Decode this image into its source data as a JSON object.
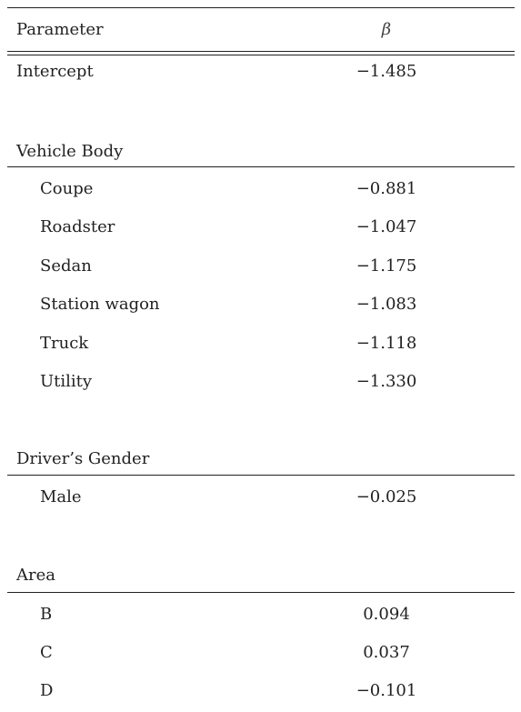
{
  "header": {
    "parameter_label": "Parameter",
    "coefficient_label": "β"
  },
  "intercept": {
    "label": "Intercept",
    "value": "−1.485"
  },
  "groups": [
    {
      "title": "Vehicle Body",
      "rows": [
        {
          "label": "Coupe",
          "value": "−0.881"
        },
        {
          "label": "Roadster",
          "value": "−1.047"
        },
        {
          "label": "Sedan",
          "value": "−1.175"
        },
        {
          "label": "Station wagon",
          "value": "−1.083"
        },
        {
          "label": "Truck",
          "value": "−1.118"
        },
        {
          "label": "Utility",
          "value": "−1.330"
        }
      ]
    },
    {
      "title": "Driver’s Gender",
      "rows": [
        {
          "label": "Male",
          "value": "−0.025"
        }
      ]
    },
    {
      "title": "Area",
      "rows": [
        {
          "label": "B",
          "value": "0.094"
        },
        {
          "label": "C",
          "value": "0.037"
        },
        {
          "label": "D",
          "value": "−0.101"
        }
      ]
    }
  ]
}
